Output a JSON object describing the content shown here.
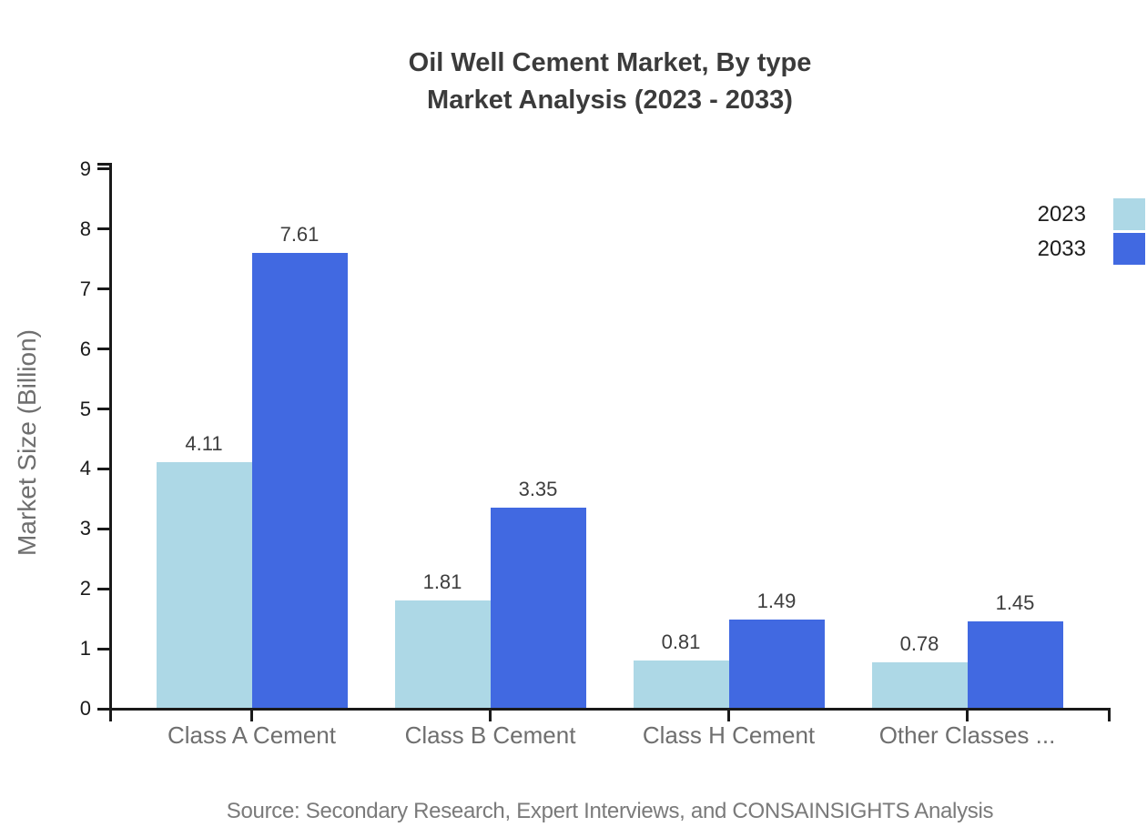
{
  "page": {
    "title_line1": "Oil Well Cement Market, By type",
    "title_line2": "Market Analysis (2023 - 2033)",
    "source": "Source: Secondary Research, Expert Interviews, and CONSAINSIGHTS Analysis"
  },
  "legend": {
    "position": "top-right",
    "items": [
      {
        "label": "2023",
        "color": "#add8e6"
      },
      {
        "label": "2033",
        "color": "#4169e1"
      }
    ]
  },
  "chart_data": {
    "type": "bar",
    "title": "Oil Well Cement Market, By type - Market Analysis (2023 - 2033)",
    "categories": [
      "Class A Cement",
      "Class B Cement",
      "Class H Cement",
      "Other Classes ..."
    ],
    "series": [
      {
        "name": "2023",
        "color": "#add8e6",
        "values": [
          4.11,
          1.81,
          0.81,
          0.78
        ]
      },
      {
        "name": "2033",
        "color": "#4169e1",
        "values": [
          7.61,
          3.35,
          1.49,
          1.45
        ]
      }
    ],
    "xlabel": "",
    "ylabel": "Market Size (Billion)",
    "ylim": [
      0,
      9
    ],
    "yticks": [
      0,
      1,
      2,
      3,
      4,
      5,
      6,
      7,
      8,
      9
    ],
    "grid": false,
    "value_labels": true,
    "legend_position": "top-right"
  },
  "colors": {
    "background": "#ffffff",
    "axis": "#1a1a1a",
    "title_text": "#3b3b3b",
    "value_label_text": "#3d3d3d",
    "category_label_text": "#6f6f6f",
    "axis_title_text": "#6f6f6f",
    "source_text": "#7a7a7a",
    "series_2023": "#add8e6",
    "series_2033": "#4169e1"
  }
}
